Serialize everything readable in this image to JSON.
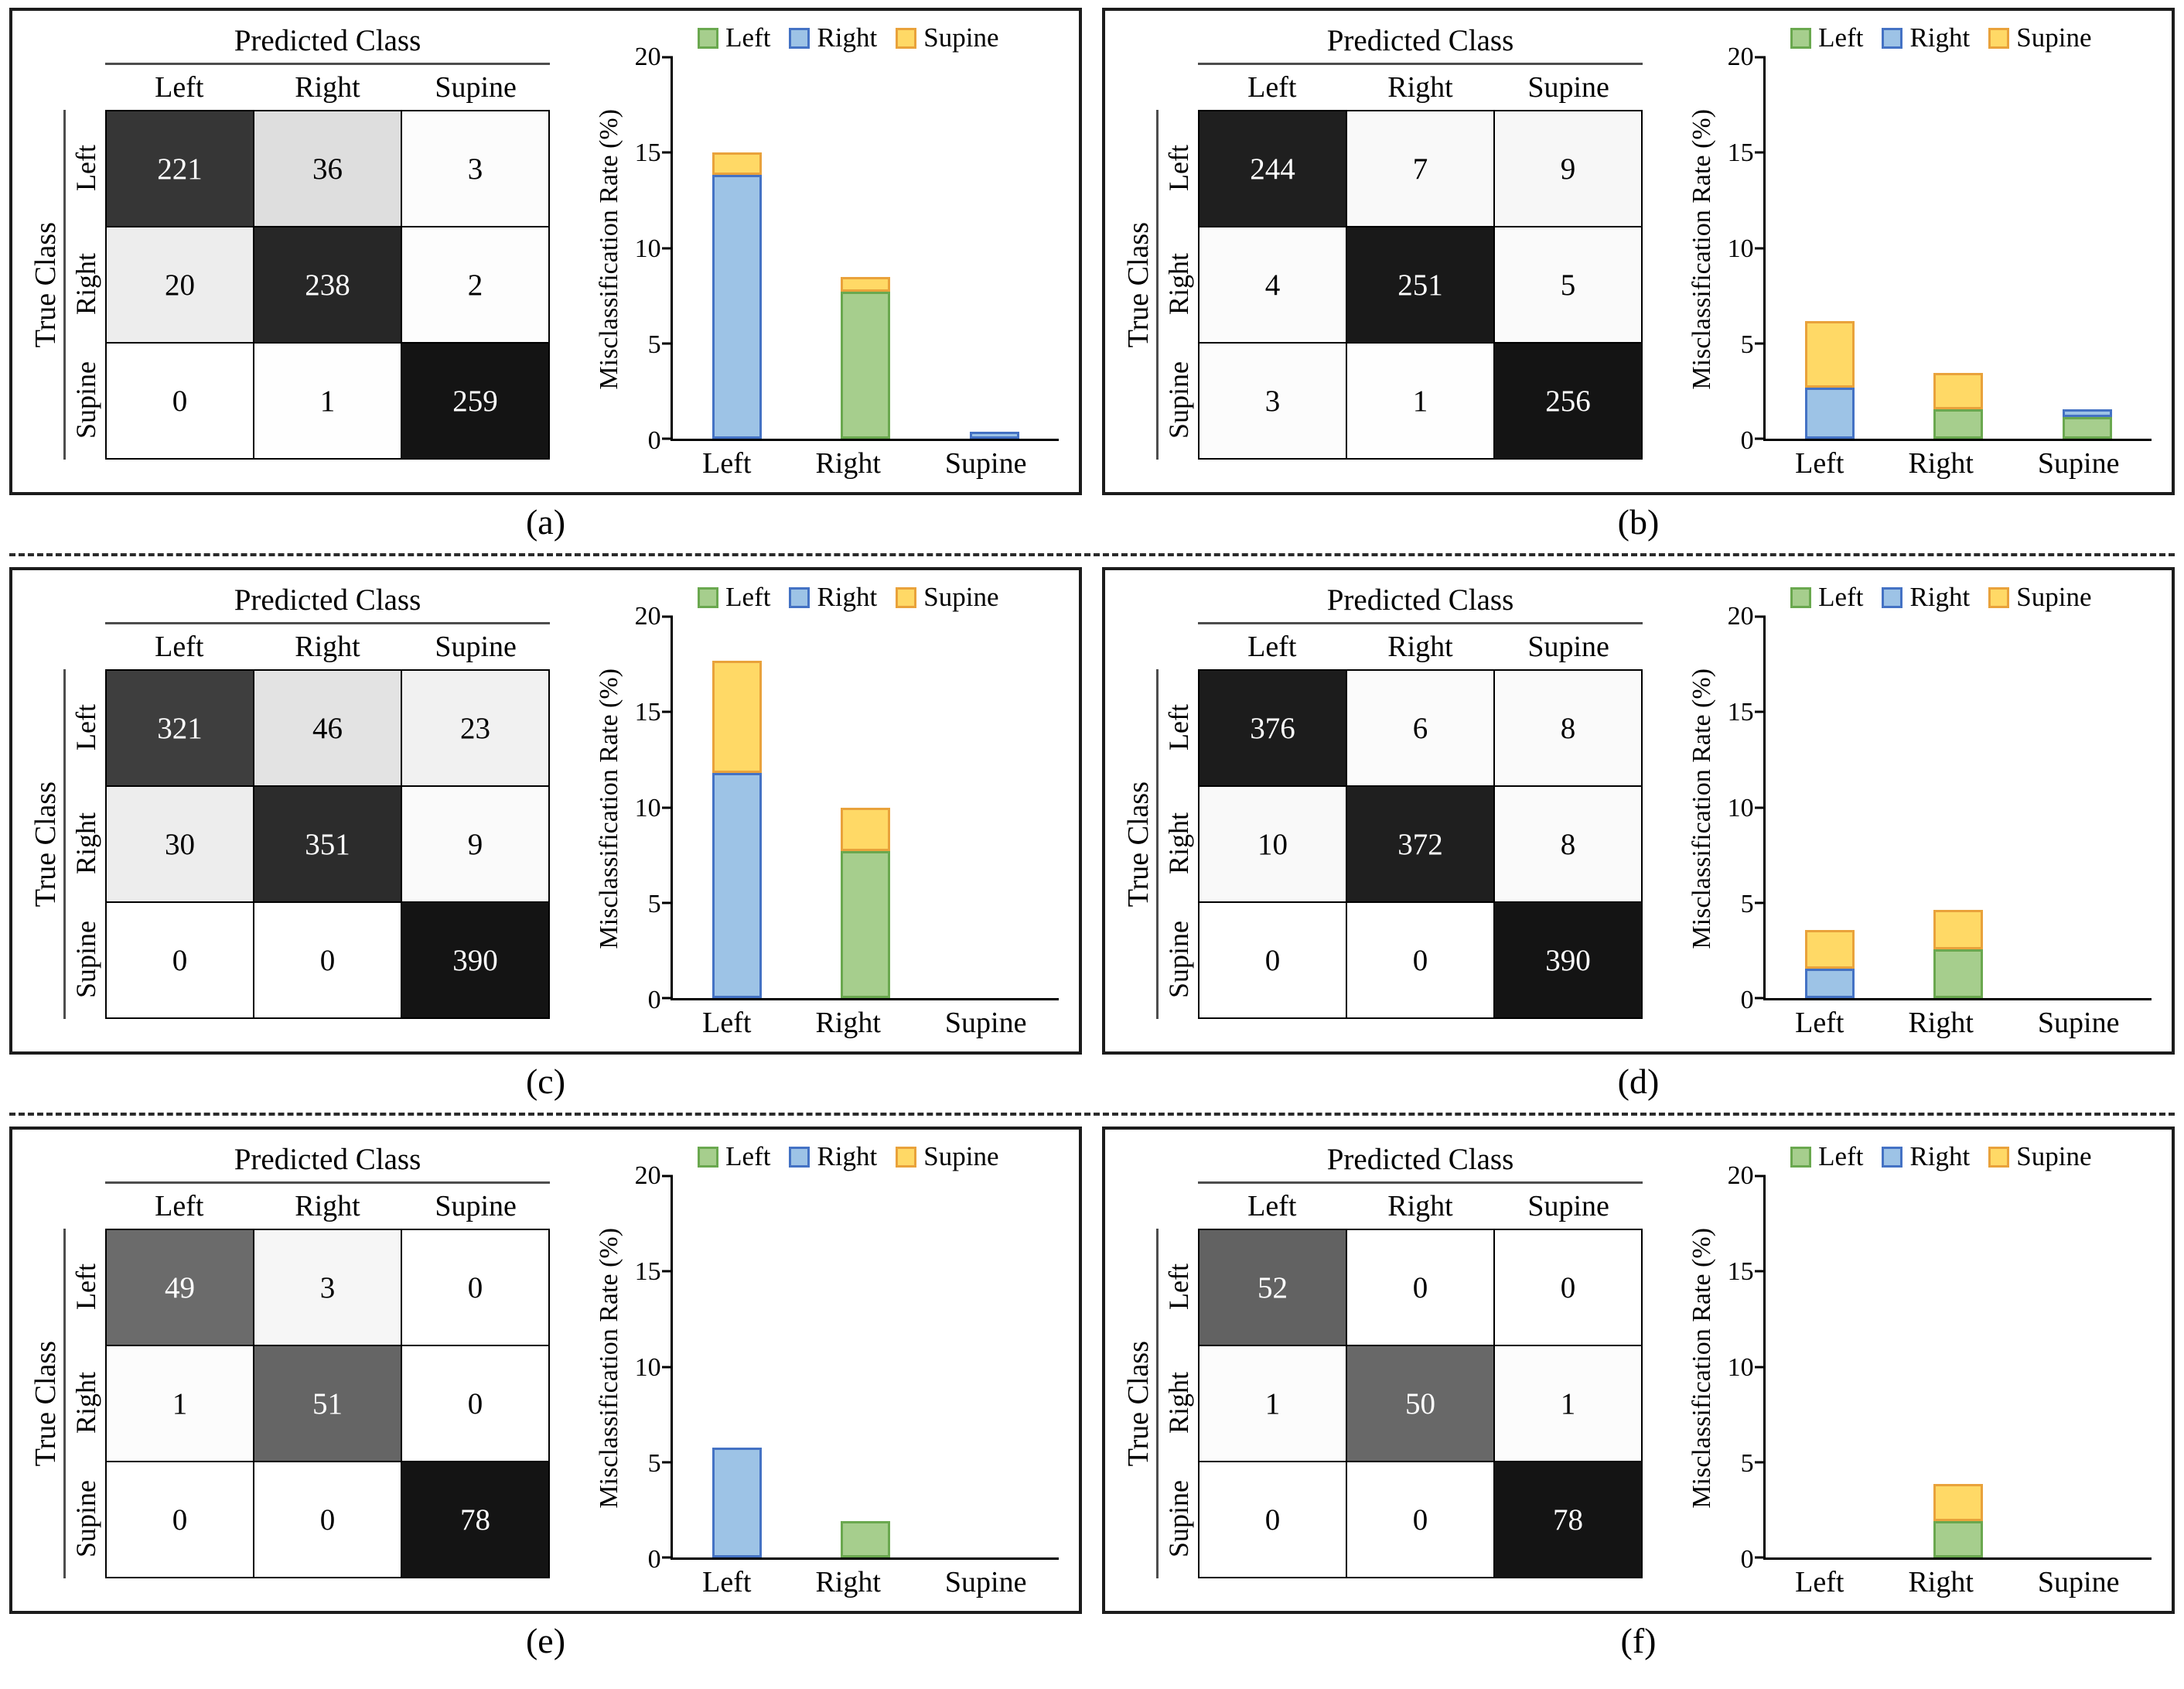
{
  "labels": {
    "predicted_class": "Predicted Class",
    "true_class": "True Class",
    "classes": [
      "Left",
      "Right",
      "Supine"
    ],
    "y_axis_label": "Misclassification Rate (%)",
    "y_ticks": [
      0,
      5,
      10,
      15,
      20
    ]
  },
  "series_colors": {
    "Left": {
      "fill": "#A6CE8D",
      "border": "#6AA84F"
    },
    "Right": {
      "fill": "#9DC3E6",
      "border": "#4472C4"
    },
    "Supine": {
      "fill": "#FFD966",
      "border": "#E9A23B"
    }
  },
  "chart_data": [
    {
      "panel": "(a)",
      "confusion_matrix": {
        "type": "heatmap",
        "predicted": [
          "Left",
          "Right",
          "Supine"
        ],
        "true": [
          "Left",
          "Right",
          "Supine"
        ],
        "rows": [
          [
            221,
            36,
            3
          ],
          [
            20,
            238,
            2
          ],
          [
            0,
            1,
            259
          ]
        ]
      },
      "bar": {
        "type": "bar",
        "stacked": true,
        "categories": [
          "Left",
          "Right",
          "Supine"
        ],
        "series": [
          {
            "name": "Left",
            "values": [
              0,
              7.69,
              0
            ]
          },
          {
            "name": "Right",
            "values": [
              13.85,
              0,
              0.38
            ]
          },
          {
            "name": "Supine",
            "values": [
              1.15,
              0.77,
              0
            ]
          }
        ],
        "ylabel": "Misclassification Rate (%)",
        "ylim": [
          0,
          20
        ],
        "yticks": [
          0,
          5,
          10,
          15,
          20
        ],
        "legend_position": "top"
      }
    },
    {
      "panel": "(b)",
      "confusion_matrix": {
        "type": "heatmap",
        "predicted": [
          "Left",
          "Right",
          "Supine"
        ],
        "true": [
          "Left",
          "Right",
          "Supine"
        ],
        "rows": [
          [
            244,
            7,
            9
          ],
          [
            4,
            251,
            5
          ],
          [
            3,
            1,
            256
          ]
        ]
      },
      "bar": {
        "type": "bar",
        "stacked": true,
        "categories": [
          "Left",
          "Right",
          "Supine"
        ],
        "series": [
          {
            "name": "Left",
            "values": [
              0,
              1.54,
              1.15
            ]
          },
          {
            "name": "Right",
            "values": [
              2.69,
              0,
              0.38
            ]
          },
          {
            "name": "Supine",
            "values": [
              3.46,
              1.92,
              0
            ]
          }
        ],
        "ylabel": "Misclassification Rate (%)",
        "ylim": [
          0,
          20
        ],
        "yticks": [
          0,
          5,
          10,
          15,
          20
        ],
        "legend_position": "top"
      }
    },
    {
      "panel": "(c)",
      "confusion_matrix": {
        "type": "heatmap",
        "predicted": [
          "Left",
          "Right",
          "Supine"
        ],
        "true": [
          "Left",
          "Right",
          "Supine"
        ],
        "rows": [
          [
            321,
            46,
            23
          ],
          [
            30,
            351,
            9
          ],
          [
            0,
            0,
            390
          ]
        ]
      },
      "bar": {
        "type": "bar",
        "stacked": true,
        "categories": [
          "Left",
          "Right",
          "Supine"
        ],
        "series": [
          {
            "name": "Left",
            "values": [
              0,
              7.69,
              0
            ]
          },
          {
            "name": "Right",
            "values": [
              11.79,
              0,
              0
            ]
          },
          {
            "name": "Supine",
            "values": [
              5.9,
              2.31,
              0
            ]
          }
        ],
        "ylabel": "Misclassification Rate (%)",
        "ylim": [
          0,
          20
        ],
        "yticks": [
          0,
          5,
          10,
          15,
          20
        ],
        "legend_position": "top"
      }
    },
    {
      "panel": "(d)",
      "confusion_matrix": {
        "type": "heatmap",
        "predicted": [
          "Left",
          "Right",
          "Supine"
        ],
        "true": [
          "Left",
          "Right",
          "Supine"
        ],
        "rows": [
          [
            376,
            6,
            8
          ],
          [
            10,
            372,
            8
          ],
          [
            0,
            0,
            390
          ]
        ]
      },
      "bar": {
        "type": "bar",
        "stacked": true,
        "categories": [
          "Left",
          "Right",
          "Supine"
        ],
        "series": [
          {
            "name": "Left",
            "values": [
              0,
              2.56,
              0
            ]
          },
          {
            "name": "Right",
            "values": [
              1.54,
              0,
              0
            ]
          },
          {
            "name": "Supine",
            "values": [
              2.05,
              2.05,
              0
            ]
          }
        ],
        "ylabel": "Misclassification Rate (%)",
        "ylim": [
          0,
          20
        ],
        "yticks": [
          0,
          5,
          10,
          15,
          20
        ],
        "legend_position": "top"
      }
    },
    {
      "panel": "(e)",
      "confusion_matrix": {
        "type": "heatmap",
        "predicted": [
          "Left",
          "Right",
          "Supine"
        ],
        "true": [
          "Left",
          "Right",
          "Supine"
        ],
        "rows": [
          [
            49,
            3,
            0
          ],
          [
            1,
            51,
            0
          ],
          [
            0,
            0,
            78
          ]
        ]
      },
      "bar": {
        "type": "bar",
        "stacked": true,
        "categories": [
          "Left",
          "Right",
          "Supine"
        ],
        "series": [
          {
            "name": "Left",
            "values": [
              0,
              1.92,
              0
            ]
          },
          {
            "name": "Right",
            "values": [
              5.77,
              0,
              0
            ]
          },
          {
            "name": "Supine",
            "values": [
              0,
              0,
              0
            ]
          }
        ],
        "ylabel": "Misclassification Rate (%)",
        "ylim": [
          0,
          20
        ],
        "yticks": [
          0,
          5,
          10,
          15,
          20
        ],
        "legend_position": "top"
      }
    },
    {
      "panel": "(f)",
      "confusion_matrix": {
        "type": "heatmap",
        "predicted": [
          "Left",
          "Right",
          "Supine"
        ],
        "true": [
          "Left",
          "Right",
          "Supine"
        ],
        "rows": [
          [
            52,
            0,
            0
          ],
          [
            1,
            50,
            1
          ],
          [
            0,
            0,
            78
          ]
        ]
      },
      "bar": {
        "type": "bar",
        "stacked": true,
        "categories": [
          "Left",
          "Right",
          "Supine"
        ],
        "series": [
          {
            "name": "Left",
            "values": [
              0,
              1.92,
              0
            ]
          },
          {
            "name": "Right",
            "values": [
              0,
              0,
              0
            ]
          },
          {
            "name": "Supine",
            "values": [
              0,
              1.92,
              0
            ]
          }
        ],
        "ylabel": "Misclassification Rate (%)",
        "ylim": [
          0,
          20
        ],
        "yticks": [
          0,
          5,
          10,
          15,
          20
        ],
        "legend_position": "top"
      }
    }
  ]
}
